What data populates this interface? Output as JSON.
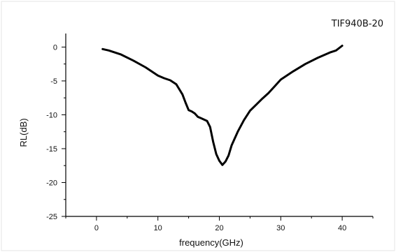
{
  "chart_data": {
    "type": "line",
    "title": "",
    "annotation": "TIF940B-20",
    "xlabel": "frequency(GHz)",
    "ylabel": "RL(dB)",
    "xlim": [
      -5,
      45
    ],
    "ylim": [
      -25,
      2
    ],
    "x_ticks": [
      0,
      10,
      20,
      30,
      40
    ],
    "y_ticks": [
      0,
      -5,
      -10,
      -15,
      -20,
      -25
    ],
    "grid": false,
    "legend": "none",
    "series": [
      {
        "color": "#000000",
        "x": [
          1,
          2,
          4,
          6,
          8,
          10,
          11,
          12,
          13,
          14,
          14.5,
          15,
          15.5,
          16,
          16.5,
          17,
          18,
          18.5,
          19,
          19.5,
          20,
          20.5,
          21,
          21.5,
          22,
          23,
          24,
          25,
          26,
          27,
          28,
          29,
          30,
          32,
          34,
          36,
          38,
          39,
          40
        ],
        "y": [
          -0.3,
          -0.5,
          -1.1,
          -2.0,
          -3.0,
          -4.2,
          -4.6,
          -4.9,
          -5.5,
          -7.0,
          -8.2,
          -9.3,
          -9.5,
          -9.8,
          -10.3,
          -10.5,
          -10.9,
          -11.8,
          -14.0,
          -15.8,
          -16.8,
          -17.4,
          -16.9,
          -16.0,
          -14.5,
          -12.5,
          -10.8,
          -9.4,
          -8.5,
          -7.6,
          -6.8,
          -5.8,
          -4.8,
          -3.6,
          -2.5,
          -1.6,
          -0.8,
          -0.5,
          0.2
        ]
      }
    ]
  }
}
